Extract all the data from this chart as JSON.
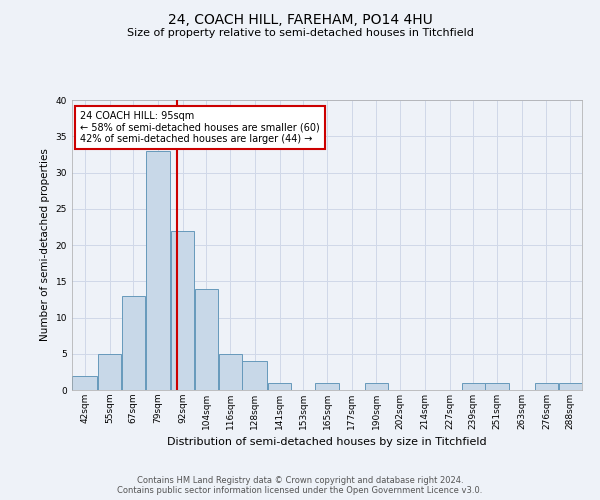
{
  "title": "24, COACH HILL, FAREHAM, PO14 4HU",
  "subtitle": "Size of property relative to semi-detached houses in Titchfield",
  "xlabel": "Distribution of semi-detached houses by size in Titchfield",
  "ylabel": "Number of semi-detached properties",
  "footer_line1": "Contains HM Land Registry data © Crown copyright and database right 2024.",
  "footer_line2": "Contains public sector information licensed under the Open Government Licence v3.0.",
  "bin_labels": [
    "42sqm",
    "55sqm",
    "67sqm",
    "79sqm",
    "92sqm",
    "104sqm",
    "116sqm",
    "128sqm",
    "141sqm",
    "153sqm",
    "165sqm",
    "177sqm",
    "190sqm",
    "202sqm",
    "214sqm",
    "227sqm",
    "239sqm",
    "251sqm",
    "263sqm",
    "276sqm",
    "288sqm"
  ],
  "bin_edges": [
    42,
    55,
    67,
    79,
    92,
    104,
    116,
    128,
    141,
    153,
    165,
    177,
    190,
    202,
    214,
    227,
    239,
    251,
    263,
    276,
    288,
    300
  ],
  "bar_heights": [
    2,
    5,
    13,
    33,
    22,
    14,
    5,
    4,
    1,
    0,
    1,
    0,
    1,
    0,
    0,
    0,
    1,
    1,
    0,
    1,
    1
  ],
  "bar_color": "#c8d8e8",
  "bar_edgecolor": "#6699bb",
  "property_size": 95,
  "property_line_color": "#cc0000",
  "annotation_text": "24 COACH HILL: 95sqm\n← 58% of semi-detached houses are smaller (60)\n42% of semi-detached houses are larger (44) →",
  "annotation_box_edgecolor": "#cc0000",
  "ylim": [
    0,
    40
  ],
  "yticks": [
    0,
    5,
    10,
    15,
    20,
    25,
    30,
    35,
    40
  ],
  "grid_color": "#d0d8e8",
  "bg_color": "#eef2f8",
  "plot_bg_color": "#eef2f8",
  "title_fontsize": 10,
  "subtitle_fontsize": 8,
  "ylabel_fontsize": 7.5,
  "xlabel_fontsize": 8,
  "tick_fontsize": 6.5,
  "footer_fontsize": 6,
  "annot_fontsize": 7
}
